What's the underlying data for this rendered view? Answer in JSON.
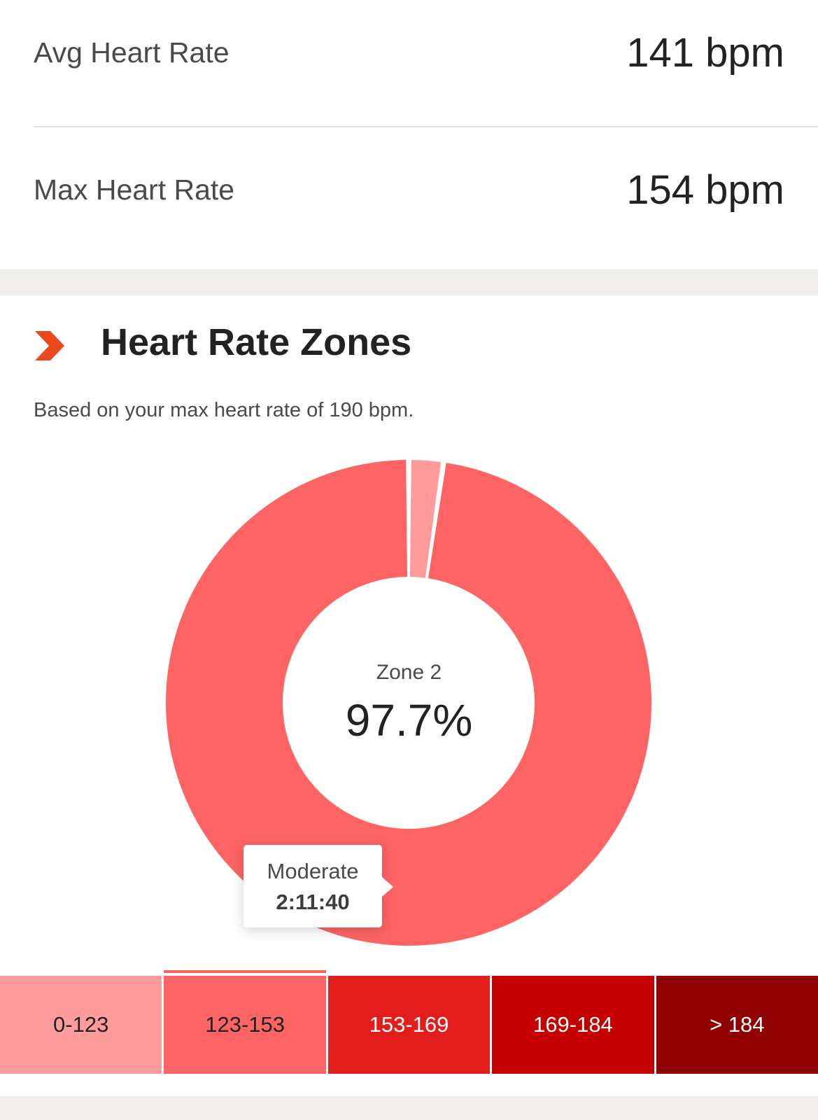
{
  "stats": {
    "avg": {
      "label": "Avg Heart Rate",
      "value": "141 bpm"
    },
    "max": {
      "label": "Max Heart Rate",
      "value": "154 bpm"
    }
  },
  "zones_section": {
    "title": "Heart Rate Zones",
    "subtitle": "Based on your max heart rate of 190 bpm.",
    "icon": "chevron-right-icon",
    "accent_color": "#e8491d"
  },
  "chart_data": {
    "type": "pie",
    "categories": [
      "0-123",
      "123-153",
      "153-169",
      "169-184",
      "> 184"
    ],
    "values": [
      2.3,
      97.7,
      0,
      0,
      0
    ],
    "colors": [
      "#ff9b9b",
      "#ff6464",
      "#e31c1c",
      "#c40000",
      "#8f0000"
    ],
    "center_label": "Zone 2",
    "center_value": "97.7%",
    "tooltip": {
      "title": "Moderate",
      "value": "2:11:40"
    }
  },
  "zone_bar": [
    {
      "label": "0-123",
      "color": "#ff9b9b",
      "text_color": "#222222"
    },
    {
      "label": "123-153",
      "color": "#ff6464",
      "text_color": "#222222",
      "selected": true
    },
    {
      "label": "153-169",
      "color": "#e31c1c",
      "text_color": "#ffffff"
    },
    {
      "label": "169-184",
      "color": "#c40000",
      "text_color": "#ffffff"
    },
    {
      "label": "> 184",
      "color": "#8f0000",
      "text_color": "#ffffff"
    }
  ]
}
